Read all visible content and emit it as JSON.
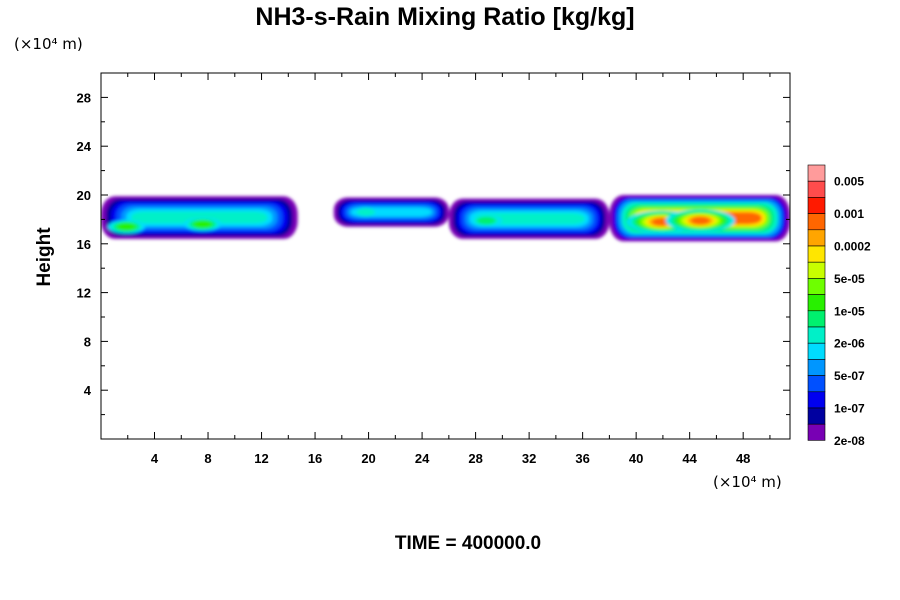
{
  "chart_data": {
    "type": "heatmap",
    "title": "NH3-s-Rain Mixing Ratio [kg/kg]",
    "ylabel": "Height",
    "y_unit": "(×10⁴ m)",
    "x_unit": "(×10⁴ m)",
    "x_ticks": [
      4,
      8,
      12,
      16,
      20,
      24,
      28,
      32,
      36,
      40,
      44,
      48
    ],
    "y_ticks": [
      4,
      8,
      12,
      16,
      20,
      24,
      28
    ],
    "xlim": [
      0,
      51.5
    ],
    "ylim": [
      0,
      30
    ],
    "footer": "TIME = 400000.0",
    "colorbar": {
      "levels_printed": [
        "0.005",
        "0.001",
        "0.0002",
        "5e-05",
        "1e-05",
        "2e-06",
        "5e-07",
        "1e-07",
        "2e-08"
      ],
      "colors": [
        "#ff9b9b",
        "#ff4c4c",
        "#ff1a00",
        "#ff6600",
        "#ffa500",
        "#ffe600",
        "#c8ff00",
        "#6eff00",
        "#28f000",
        "#00f06e",
        "#00f0c8",
        "#00dcff",
        "#0096ff",
        "#0050ff",
        "#0000f0",
        "#0000a0",
        "#7800b4"
      ]
    },
    "bands": [
      {
        "x_start": 0.0,
        "x_end": 14.7,
        "y_bottom": 16.4,
        "y_top": 19.9,
        "level_max": 6
      },
      {
        "x_start": 17.4,
        "x_end": 26.0,
        "y_bottom": 17.4,
        "y_top": 19.8,
        "level_max": 5
      },
      {
        "x_start": 26.0,
        "x_end": 38.0,
        "y_bottom": 16.4,
        "y_top": 19.7,
        "level_max": 6
      },
      {
        "x_start": 38.0,
        "x_end": 51.5,
        "y_bottom": 16.2,
        "y_top": 20.0,
        "level_max": 13
      }
    ],
    "hotspots": [
      {
        "x": 1.9,
        "y": 17.4,
        "level": 8
      },
      {
        "x": 7.6,
        "y": 17.6,
        "level": 8
      },
      {
        "x": 19.8,
        "y": 18.6,
        "level": 6
      },
      {
        "x": 28.8,
        "y": 17.9,
        "level": 7
      },
      {
        "x": 41.9,
        "y": 17.8,
        "level": 13
      },
      {
        "x": 44.8,
        "y": 17.9,
        "level": 13
      }
    ]
  }
}
